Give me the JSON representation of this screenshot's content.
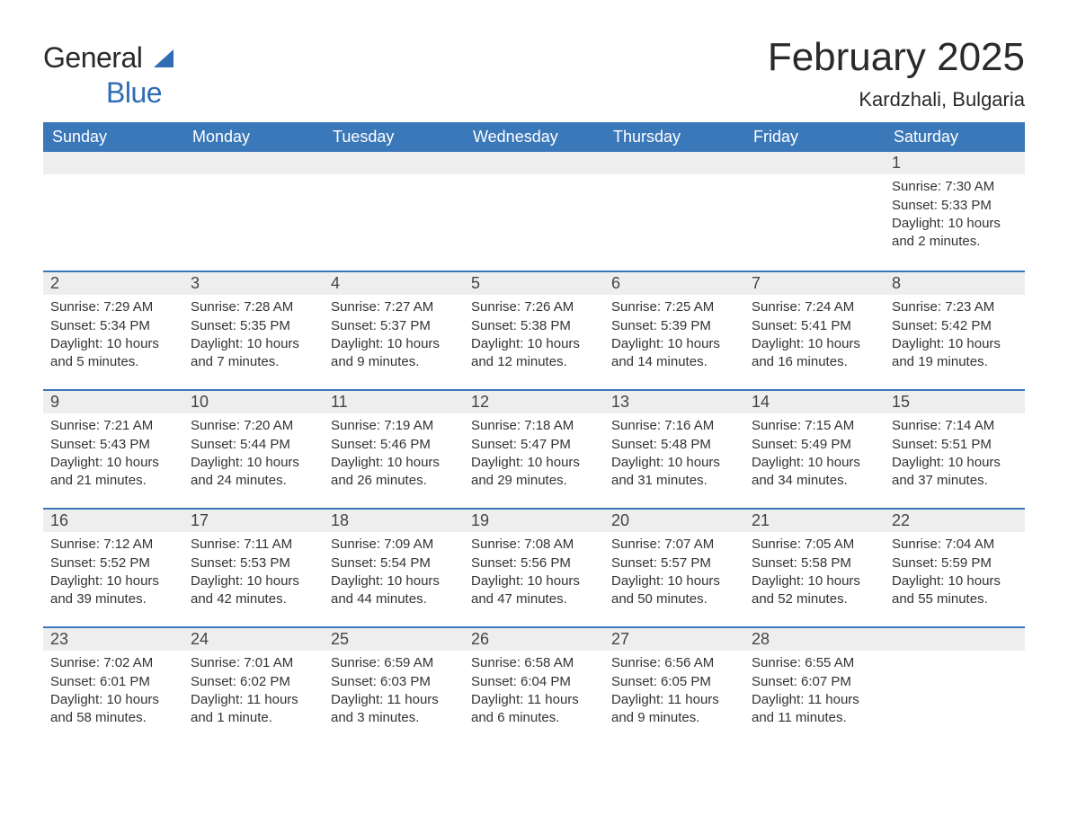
{
  "logo": {
    "word1": "General",
    "word2": "Blue"
  },
  "title": "February 2025",
  "location": "Kardzhali, Bulgaria",
  "colors": {
    "header_bg": "#3a78b9",
    "header_text": "#ffffff",
    "daynum_bg": "#eeeeee",
    "week_border": "#3a78b9",
    "text": "#333333",
    "logo_dark": "#2a2a2a",
    "logo_blue": "#2e6db5"
  },
  "day_names": [
    "Sunday",
    "Monday",
    "Tuesday",
    "Wednesday",
    "Thursday",
    "Friday",
    "Saturday"
  ],
  "weeks": [
    [
      null,
      null,
      null,
      null,
      null,
      null,
      {
        "n": "1",
        "sunrise": "Sunrise: 7:30 AM",
        "sunset": "Sunset: 5:33 PM",
        "daylight": "Daylight: 10 hours and 2 minutes."
      }
    ],
    [
      {
        "n": "2",
        "sunrise": "Sunrise: 7:29 AM",
        "sunset": "Sunset: 5:34 PM",
        "daylight": "Daylight: 10 hours and 5 minutes."
      },
      {
        "n": "3",
        "sunrise": "Sunrise: 7:28 AM",
        "sunset": "Sunset: 5:35 PM",
        "daylight": "Daylight: 10 hours and 7 minutes."
      },
      {
        "n": "4",
        "sunrise": "Sunrise: 7:27 AM",
        "sunset": "Sunset: 5:37 PM",
        "daylight": "Daylight: 10 hours and 9 minutes."
      },
      {
        "n": "5",
        "sunrise": "Sunrise: 7:26 AM",
        "sunset": "Sunset: 5:38 PM",
        "daylight": "Daylight: 10 hours and 12 minutes."
      },
      {
        "n": "6",
        "sunrise": "Sunrise: 7:25 AM",
        "sunset": "Sunset: 5:39 PM",
        "daylight": "Daylight: 10 hours and 14 minutes."
      },
      {
        "n": "7",
        "sunrise": "Sunrise: 7:24 AM",
        "sunset": "Sunset: 5:41 PM",
        "daylight": "Daylight: 10 hours and 16 minutes."
      },
      {
        "n": "8",
        "sunrise": "Sunrise: 7:23 AM",
        "sunset": "Sunset: 5:42 PM",
        "daylight": "Daylight: 10 hours and 19 minutes."
      }
    ],
    [
      {
        "n": "9",
        "sunrise": "Sunrise: 7:21 AM",
        "sunset": "Sunset: 5:43 PM",
        "daylight": "Daylight: 10 hours and 21 minutes."
      },
      {
        "n": "10",
        "sunrise": "Sunrise: 7:20 AM",
        "sunset": "Sunset: 5:44 PM",
        "daylight": "Daylight: 10 hours and 24 minutes."
      },
      {
        "n": "11",
        "sunrise": "Sunrise: 7:19 AM",
        "sunset": "Sunset: 5:46 PM",
        "daylight": "Daylight: 10 hours and 26 minutes."
      },
      {
        "n": "12",
        "sunrise": "Sunrise: 7:18 AM",
        "sunset": "Sunset: 5:47 PM",
        "daylight": "Daylight: 10 hours and 29 minutes."
      },
      {
        "n": "13",
        "sunrise": "Sunrise: 7:16 AM",
        "sunset": "Sunset: 5:48 PM",
        "daylight": "Daylight: 10 hours and 31 minutes."
      },
      {
        "n": "14",
        "sunrise": "Sunrise: 7:15 AM",
        "sunset": "Sunset: 5:49 PM",
        "daylight": "Daylight: 10 hours and 34 minutes."
      },
      {
        "n": "15",
        "sunrise": "Sunrise: 7:14 AM",
        "sunset": "Sunset: 5:51 PM",
        "daylight": "Daylight: 10 hours and 37 minutes."
      }
    ],
    [
      {
        "n": "16",
        "sunrise": "Sunrise: 7:12 AM",
        "sunset": "Sunset: 5:52 PM",
        "daylight": "Daylight: 10 hours and 39 minutes."
      },
      {
        "n": "17",
        "sunrise": "Sunrise: 7:11 AM",
        "sunset": "Sunset: 5:53 PM",
        "daylight": "Daylight: 10 hours and 42 minutes."
      },
      {
        "n": "18",
        "sunrise": "Sunrise: 7:09 AM",
        "sunset": "Sunset: 5:54 PM",
        "daylight": "Daylight: 10 hours and 44 minutes."
      },
      {
        "n": "19",
        "sunrise": "Sunrise: 7:08 AM",
        "sunset": "Sunset: 5:56 PM",
        "daylight": "Daylight: 10 hours and 47 minutes."
      },
      {
        "n": "20",
        "sunrise": "Sunrise: 7:07 AM",
        "sunset": "Sunset: 5:57 PM",
        "daylight": "Daylight: 10 hours and 50 minutes."
      },
      {
        "n": "21",
        "sunrise": "Sunrise: 7:05 AM",
        "sunset": "Sunset: 5:58 PM",
        "daylight": "Daylight: 10 hours and 52 minutes."
      },
      {
        "n": "22",
        "sunrise": "Sunrise: 7:04 AM",
        "sunset": "Sunset: 5:59 PM",
        "daylight": "Daylight: 10 hours and 55 minutes."
      }
    ],
    [
      {
        "n": "23",
        "sunrise": "Sunrise: 7:02 AM",
        "sunset": "Sunset: 6:01 PM",
        "daylight": "Daylight: 10 hours and 58 minutes."
      },
      {
        "n": "24",
        "sunrise": "Sunrise: 7:01 AM",
        "sunset": "Sunset: 6:02 PM",
        "daylight": "Daylight: 11 hours and 1 minute."
      },
      {
        "n": "25",
        "sunrise": "Sunrise: 6:59 AM",
        "sunset": "Sunset: 6:03 PM",
        "daylight": "Daylight: 11 hours and 3 minutes."
      },
      {
        "n": "26",
        "sunrise": "Sunrise: 6:58 AM",
        "sunset": "Sunset: 6:04 PM",
        "daylight": "Daylight: 11 hours and 6 minutes."
      },
      {
        "n": "27",
        "sunrise": "Sunrise: 6:56 AM",
        "sunset": "Sunset: 6:05 PM",
        "daylight": "Daylight: 11 hours and 9 minutes."
      },
      {
        "n": "28",
        "sunrise": "Sunrise: 6:55 AM",
        "sunset": "Sunset: 6:07 PM",
        "daylight": "Daylight: 11 hours and 11 minutes."
      },
      null
    ]
  ]
}
